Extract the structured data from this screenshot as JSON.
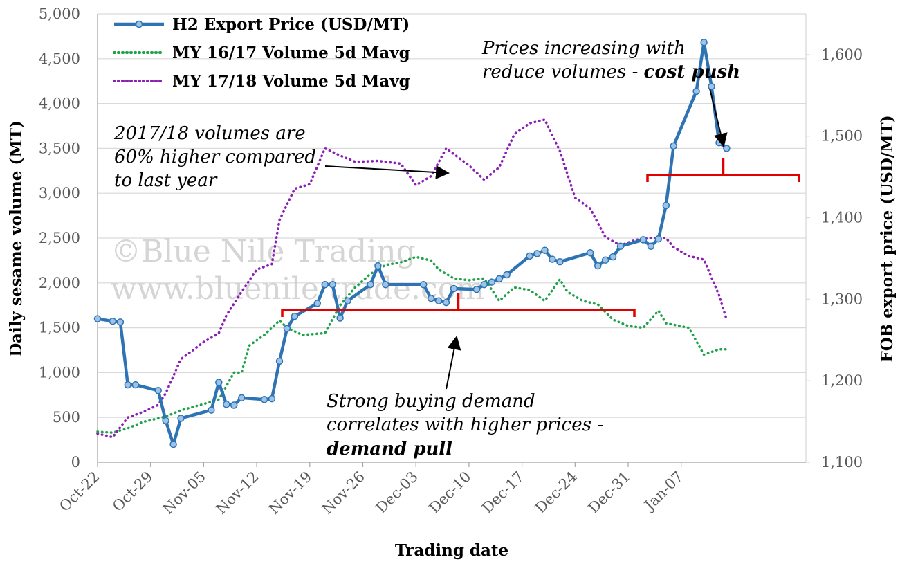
{
  "chart_data": {
    "type": "line",
    "xlabel": "Trading date",
    "ylabel_left": "Daily sesame volume (MT)",
    "ylabel_right": "FOB export price (USD/MT)",
    "ylim_left": [
      0,
      5000
    ],
    "ylim_right": [
      1100,
      1650
    ],
    "yticks_left": [
      "0",
      "500",
      "1,000",
      "1,500",
      "2,000",
      "2,500",
      "3,000",
      "3,500",
      "4,000",
      "4,500",
      "5,000"
    ],
    "yticks_right": [
      "1,100",
      "1,200",
      "1,300",
      "1,400",
      "1,500",
      "1,600"
    ],
    "x_tick_labels": [
      "Oct-22",
      "Oct-29",
      "Nov-05",
      "Nov-12",
      "Nov-19",
      "Nov-26",
      "Dec-03",
      "Dec-10",
      "Dec-17",
      "Dec-24",
      "Dec-31",
      "Jan-07"
    ],
    "grid": "horizontal",
    "legend_position": "top-left",
    "series": [
      {
        "name": "H2 Export Price (USD/MT)",
        "axis": "right",
        "color": "#2e74b5",
        "style": "solid-markers",
        "points": [
          [
            "Oct-22",
            1276
          ],
          [
            "Oct-24",
            1273
          ],
          [
            "Oct-25",
            1272
          ],
          [
            "Oct-26",
            1195
          ],
          [
            "Oct-27",
            1195
          ],
          [
            "Oct-30",
            1188
          ],
          [
            "Oct-31",
            1151
          ],
          [
            "Nov-01",
            1122
          ],
          [
            "Nov-02",
            1154
          ],
          [
            "Nov-06",
            1164
          ],
          [
            "Nov-07",
            1198
          ],
          [
            "Nov-08",
            1171
          ],
          [
            "Nov-09",
            1170
          ],
          [
            "Nov-10",
            1179
          ],
          [
            "Nov-13",
            1177
          ],
          [
            "Nov-14",
            1178
          ],
          [
            "Nov-15",
            1224
          ],
          [
            "Nov-16",
            1264
          ],
          [
            "Nov-17",
            1279
          ],
          [
            "Nov-20",
            1295
          ],
          [
            "Nov-21",
            1318
          ],
          [
            "Nov-22",
            1318
          ],
          [
            "Nov-23",
            1277
          ],
          [
            "Nov-24",
            1298
          ],
          [
            "Nov-27",
            1318
          ],
          [
            "Nov-28",
            1341
          ],
          [
            "Nov-29",
            1318
          ],
          [
            "Dec-04",
            1318
          ],
          [
            "Dec-05",
            1301
          ],
          [
            "Dec-06",
            1298
          ],
          [
            "Dec-07",
            1296
          ],
          [
            "Dec-08",
            1313
          ],
          [
            "Dec-11",
            1312
          ],
          [
            "Dec-12",
            1318
          ],
          [
            "Dec-13",
            1321
          ],
          [
            "Dec-14",
            1325
          ],
          [
            "Dec-15",
            1330
          ],
          [
            "Dec-18",
            1353
          ],
          [
            "Dec-19",
            1356
          ],
          [
            "Dec-20",
            1360
          ],
          [
            "Dec-21",
            1349
          ],
          [
            "Dec-22",
            1346
          ],
          [
            "Dec-26",
            1357
          ],
          [
            "Dec-27",
            1341
          ],
          [
            "Dec-28",
            1348
          ],
          [
            "Dec-29",
            1352
          ],
          [
            "Dec-30",
            1365
          ],
          [
            "Jan-02",
            1373
          ],
          [
            "Jan-03",
            1365
          ],
          [
            "Jan-04",
            1374
          ],
          [
            "Jan-05",
            1415
          ],
          [
            "Jan-06",
            1488
          ],
          [
            "Jan-09",
            1555
          ],
          [
            "Jan-10",
            1615
          ],
          [
            "Jan-11",
            1561
          ],
          [
            "Jan-12",
            1492
          ],
          [
            "Jan-13",
            1485
          ]
        ]
      },
      {
        "name": "MY 16/17 Volume 5d Mavg",
        "axis": "left",
        "color": "#1fa34a",
        "style": "dotted",
        "points": [
          [
            "Oct-22",
            340
          ],
          [
            "Oct-24",
            330
          ],
          [
            "Oct-26",
            380
          ],
          [
            "Oct-28",
            450
          ],
          [
            "Oct-31",
            510
          ],
          [
            "Nov-02",
            580
          ],
          [
            "Nov-05",
            650
          ],
          [
            "Nov-07",
            700
          ],
          [
            "Nov-09",
            1000
          ],
          [
            "Nov-10",
            1000
          ],
          [
            "Nov-11",
            1300
          ],
          [
            "Nov-13",
            1420
          ],
          [
            "Nov-15",
            1580
          ],
          [
            "Nov-16",
            1500
          ],
          [
            "Nov-18",
            1420
          ],
          [
            "Nov-21",
            1440
          ],
          [
            "Nov-23",
            1750
          ],
          [
            "Nov-25",
            1950
          ],
          [
            "Nov-27",
            2100
          ],
          [
            "Nov-29",
            2200
          ],
          [
            "Dec-01",
            2230
          ],
          [
            "Dec-03",
            2290
          ],
          [
            "Dec-05",
            2250
          ],
          [
            "Dec-06",
            2150
          ],
          [
            "Dec-08",
            2050
          ],
          [
            "Dec-10",
            2030
          ],
          [
            "Dec-12",
            2050
          ],
          [
            "Dec-14",
            1800
          ],
          [
            "Dec-16",
            1950
          ],
          [
            "Dec-18",
            1920
          ],
          [
            "Dec-20",
            1800
          ],
          [
            "Dec-22",
            2040
          ],
          [
            "Dec-23",
            1900
          ],
          [
            "Dec-25",
            1800
          ],
          [
            "Dec-27",
            1760
          ],
          [
            "Dec-29",
            1590
          ],
          [
            "Dec-31",
            1520
          ],
          [
            "Jan-02",
            1500
          ],
          [
            "Jan-04",
            1690
          ],
          [
            "Jan-05",
            1550
          ],
          [
            "Jan-08",
            1500
          ],
          [
            "Jan-10",
            1200
          ],
          [
            "Jan-12",
            1260
          ],
          [
            "Jan-13",
            1260
          ]
        ]
      },
      {
        "name": "MY 17/18 Volume 5d Mavg",
        "axis": "left",
        "color": "#8b1fb5",
        "style": "dotted",
        "points": [
          [
            "Oct-22",
            320
          ],
          [
            "Oct-24",
            280
          ],
          [
            "Oct-26",
            500
          ],
          [
            "Oct-28",
            560
          ],
          [
            "Oct-30",
            640
          ],
          [
            "Oct-31",
            770
          ],
          [
            "Nov-02",
            1150
          ],
          [
            "Nov-05",
            1340
          ],
          [
            "Nov-07",
            1440
          ],
          [
            "Nov-08",
            1640
          ],
          [
            "Nov-10",
            1900
          ],
          [
            "Nov-12",
            2150
          ],
          [
            "Nov-14",
            2210
          ],
          [
            "Nov-15",
            2700
          ],
          [
            "Nov-17",
            3050
          ],
          [
            "Nov-19",
            3100
          ],
          [
            "Nov-21",
            3500
          ],
          [
            "Nov-23",
            3420
          ],
          [
            "Nov-25",
            3350
          ],
          [
            "Nov-28",
            3360
          ],
          [
            "Dec-01",
            3330
          ],
          [
            "Dec-03",
            3090
          ],
          [
            "Dec-05",
            3190
          ],
          [
            "Dec-07",
            3500
          ],
          [
            "Dec-10",
            3310
          ],
          [
            "Dec-12",
            3150
          ],
          [
            "Dec-14",
            3290
          ],
          [
            "Dec-16",
            3660
          ],
          [
            "Dec-18",
            3780
          ],
          [
            "Dec-20",
            3820
          ],
          [
            "Dec-22",
            3470
          ],
          [
            "Dec-24",
            2950
          ],
          [
            "Dec-26",
            2830
          ],
          [
            "Dec-28",
            2510
          ],
          [
            "Dec-30",
            2420
          ],
          [
            "Jan-01",
            2480
          ],
          [
            "Jan-03",
            2500
          ],
          [
            "Jan-05",
            2500
          ],
          [
            "Jan-06",
            2400
          ],
          [
            "Jan-08",
            2300
          ],
          [
            "Jan-10",
            2260
          ],
          [
            "Jan-12",
            1860
          ],
          [
            "Jan-13",
            1590
          ]
        ]
      }
    ],
    "annotations": [
      {
        "lines": [
          "Prices increasing with",
          "reduce volumes - ",
          "cost push"
        ]
      },
      {
        "lines": [
          "2017/18 volumes are",
          "60% higher compared",
          "to last year"
        ]
      },
      {
        "lines": [
          "Strong buying demand",
          "correlates with higher prices -",
          "demand pull"
        ]
      }
    ],
    "bracket_color": "#e00000",
    "watermark": [
      "©Blue Nile Trading",
      "www.bluenile trade.com"
    ]
  }
}
